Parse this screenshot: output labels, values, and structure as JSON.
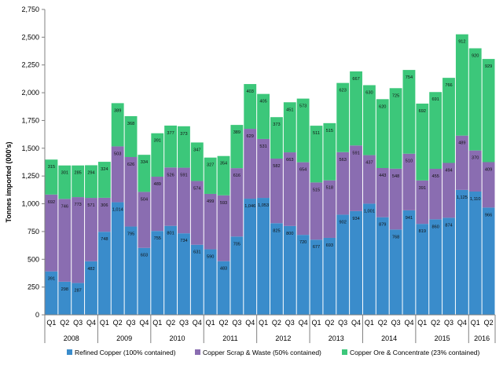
{
  "chart_data": {
    "type": "bar",
    "stacked": true,
    "ylabel": "Tonnes imported (000's)",
    "xlabel": "",
    "ylim": [
      0,
      2750
    ],
    "yticks": [
      "0",
      "250",
      "500",
      "750",
      "1,000",
      "1,250",
      "1,500",
      "1,750",
      "2,000",
      "2,250",
      "2,500",
      "2,750"
    ],
    "grid": false,
    "legend_position": "bottom",
    "categories": [
      "Q1",
      "Q2",
      "Q3",
      "Q4",
      "Q1",
      "Q2",
      "Q3",
      "Q4",
      "Q1",
      "Q2",
      "Q3",
      "Q4",
      "Q1",
      "Q2",
      "Q3",
      "Q4",
      "Q1",
      "Q2",
      "Q3",
      "Q4",
      "Q1",
      "Q2",
      "Q3",
      "Q4",
      "Q1",
      "Q2",
      "Q3",
      "Q4",
      "Q1",
      "Q2",
      "Q3",
      "Q4",
      "Q1",
      "Q2"
    ],
    "year_groups": [
      {
        "year": "2008",
        "count": 4
      },
      {
        "year": "2009",
        "count": 4
      },
      {
        "year": "2010",
        "count": 4
      },
      {
        "year": "2011",
        "count": 4
      },
      {
        "year": "2012",
        "count": 4
      },
      {
        "year": "2013",
        "count": 4
      },
      {
        "year": "2014",
        "count": 4
      },
      {
        "year": "2015",
        "count": 4
      },
      {
        "year": "2016",
        "count": 2
      }
    ],
    "series": [
      {
        "name": "Refined Copper (100% contained)",
        "color": "#3a8ccb",
        "values": [
          391,
          298,
          287,
          482,
          748,
          1014,
          795,
          603,
          755,
          801,
          734,
          631,
          590,
          483,
          705,
          1046,
          1053,
          825,
          800,
          720,
          677,
          693,
          902,
          934,
          1001,
          879,
          768,
          941,
          819,
          860,
          874,
          1125,
          1110,
          966
        ],
        "labels": [
          "391",
          "298",
          "287",
          "482",
          "748",
          "1,014",
          "795",
          "603",
          "755",
          "801",
          "734",
          "631",
          "590",
          "483",
          "705",
          "1,046",
          "1,053",
          "825",
          "800",
          "720",
          "677",
          "693",
          "902",
          "934",
          "1,001",
          "879",
          "768",
          "941",
          "819",
          "860",
          "874",
          "1,125",
          "1,110",
          "966"
        ]
      },
      {
        "name": "Copper Scrap & Waste (50% contained)",
        "color": "#8a6db1",
        "values": [
          692,
          746,
          773,
          571,
          306,
          503,
          626,
          504,
          489,
          526,
          591,
          574,
          499,
          593,
          616,
          629,
          531,
          582,
          663,
          654,
          515,
          518,
          563,
          591,
          437,
          443,
          548,
          510,
          391,
          455,
          494,
          489,
          370,
          409
        ],
        "labels": [
          "692",
          "746",
          "773",
          "571",
          "306",
          "503",
          "626",
          "504",
          "489",
          "526",
          "591",
          "574",
          "499",
          "593",
          "616",
          "629",
          "531",
          "582",
          "663",
          "654",
          "515",
          "518",
          "563",
          "591",
          "437",
          "443",
          "548",
          "510",
          "391",
          "455",
          "494",
          "489",
          "370",
          "409"
        ]
      },
      {
        "name": "Copper Ore & Concentrate (23% contained)",
        "color": "#3cc77a",
        "values": [
          315,
          301,
          285,
          294,
          324,
          389,
          368,
          334,
          391,
          377,
          373,
          347,
          327,
          354,
          389,
          403,
          405,
          373,
          451,
          573,
          511,
          515,
          623,
          667,
          630,
          620,
          725,
          754,
          692,
          691,
          766,
          912,
          920,
          929
        ],
        "labels": [
          "315",
          "301",
          "285",
          "294",
          "324",
          "389",
          "368",
          "334",
          "391",
          "377",
          "373",
          "347",
          "327",
          "354",
          "389",
          "403",
          "405",
          "373",
          "451",
          "573",
          "511",
          "515",
          "623",
          "667",
          "630",
          "620",
          "725",
          "754",
          "692",
          "691",
          "766",
          "912",
          "920",
          "929"
        ]
      }
    ]
  }
}
